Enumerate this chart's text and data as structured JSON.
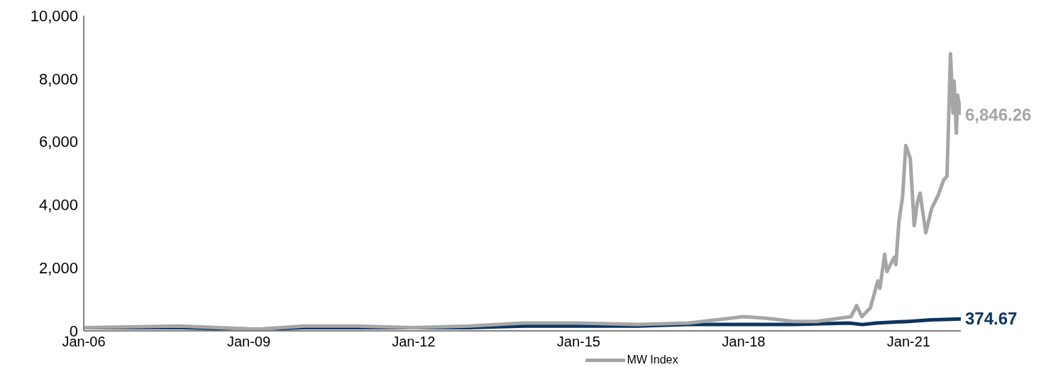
{
  "chart_data": {
    "type": "line",
    "xlim": [
      "2006-01",
      "2021-12-14"
    ],
    "xticks": [
      {
        "value": "2006-01",
        "label": "Jan-06"
      },
      {
        "value": "2009-01",
        "label": "Jan-09"
      },
      {
        "value": "2012-01",
        "label": "Jan-12"
      },
      {
        "value": "2015-01",
        "label": "Jan-15"
      },
      {
        "value": "2018-01",
        "label": "Jan-18"
      },
      {
        "value": "2021-01",
        "label": "Jan-21"
      }
    ],
    "ylim": [
      0,
      10000
    ],
    "yticks": [
      {
        "value": 0,
        "label": "0"
      },
      {
        "value": 2000,
        "label": "2,000"
      },
      {
        "value": 4000,
        "label": "4,000"
      },
      {
        "value": 6000,
        "label": "6,000"
      },
      {
        "value": 8000,
        "label": "8,000"
      },
      {
        "value": 10000,
        "label": "10,000"
      }
    ],
    "grid": false,
    "legend": "bottom",
    "marker": "none",
    "line_style": "solid",
    "series": [
      {
        "color": "#0b3560",
        "x": [
          "2006-01",
          "2007-10",
          "2009-03",
          "2010-01",
          "2011-04",
          "2011-10",
          "2013-01",
          "2014-01",
          "2015-05",
          "2016-02",
          "2017-01",
          "2018-01",
          "2018-12",
          "2019-12",
          "2020-03",
          "2020-06",
          "2021-01",
          "2021-06",
          "2021-12-14"
        ],
        "values": [
          100,
          100,
          50,
          100,
          100,
          100,
          100,
          150,
          150,
          150,
          200,
          200,
          200,
          250,
          200,
          250,
          300,
          350,
          374.67
        ],
        "value_labels": [
          null,
          null,
          null,
          null,
          null,
          null,
          null,
          null,
          null,
          null,
          null,
          null,
          null,
          null,
          null,
          null,
          null,
          null,
          "374.67"
        ]
      },
      {
        "name": "MW Index",
        "color": "#a6a6a6",
        "x": [
          "2006-01",
          "2007-10",
          "2009-03",
          "2010-01",
          "2011-01",
          "2012-01",
          "2013-01",
          "2014-01",
          "2015-01",
          "2016-02",
          "2017-01",
          "2018-01",
          "2018-06",
          "2018-12",
          "2019-05-01",
          "2019-12-15",
          "2020-01-22",
          "2020-02-25",
          "2020-04-22",
          "2020-06-10",
          "2020-06-24",
          "2020-07-26",
          "2020-08-10",
          "2020-09-26",
          "2020-10-08",
          "2020-10-29",
          "2020-11-22",
          "2020-12-13",
          "2021-01-12",
          "2021-02-07",
          "2021-03-01",
          "2021-03-18",
          "2021-04-25",
          "2021-06-02",
          "2021-07-18",
          "2021-08-21",
          "2021-09-13",
          "2021-10-06",
          "2021-10-23",
          "2021-10-30",
          "2021-11-14",
          "2021-11-22",
          "2021-12-07",
          "2021-12-14"
        ],
        "values": [
          100,
          150,
          50,
          150,
          150,
          100,
          150,
          250,
          250,
          200,
          250,
          450,
          400,
          300,
          300,
          450,
          800,
          450,
          730,
          1580,
          1350,
          2430,
          1880,
          2330,
          2100,
          3480,
          4260,
          5880,
          5470,
          3340,
          4100,
          4370,
          3110,
          3870,
          4320,
          4780,
          4900,
          8790,
          6910,
          7920,
          6270,
          7480,
          7070,
          6846.26
        ],
        "value_labels": [
          null,
          null,
          null,
          null,
          null,
          null,
          null,
          null,
          null,
          null,
          null,
          null,
          null,
          null,
          null,
          null,
          null,
          null,
          null,
          null,
          null,
          null,
          null,
          null,
          null,
          null,
          null,
          null,
          null,
          null,
          null,
          null,
          null,
          null,
          null,
          null,
          null,
          null,
          null,
          null,
          null,
          null,
          null,
          "6,846.26"
        ]
      }
    ]
  }
}
